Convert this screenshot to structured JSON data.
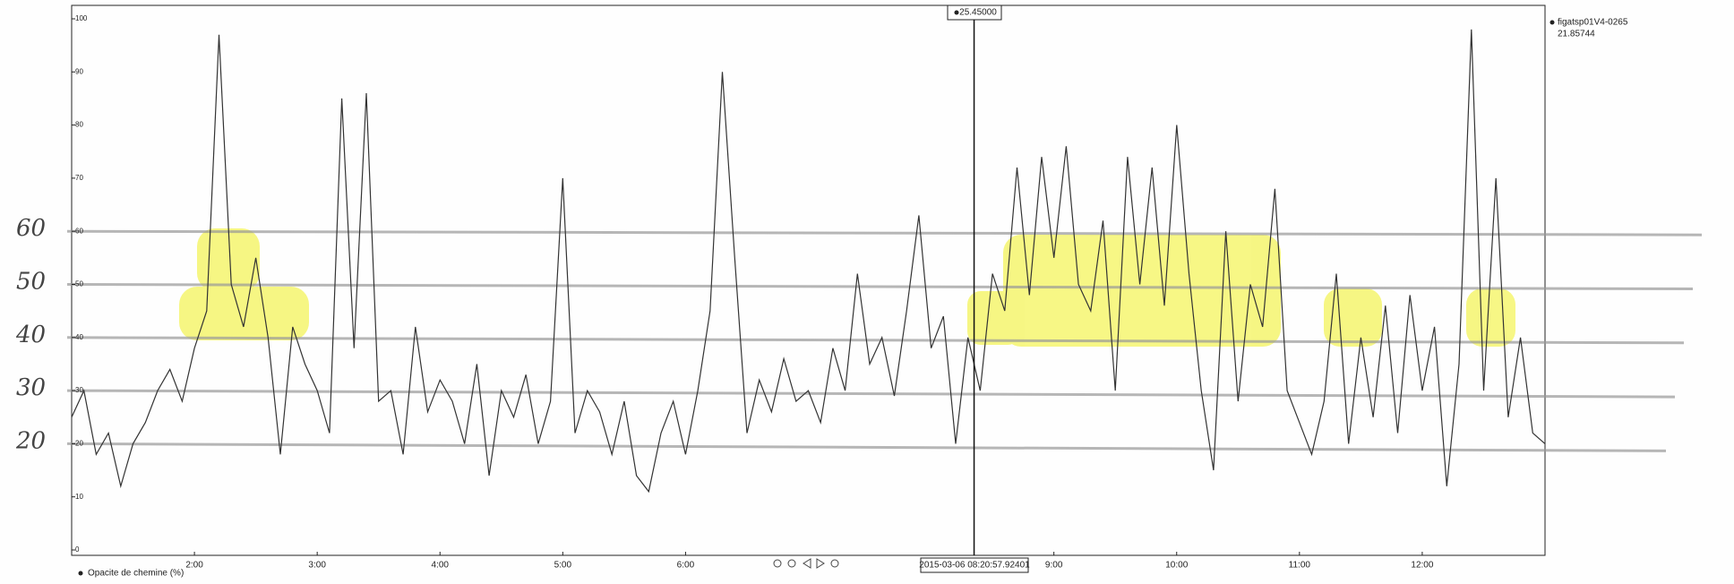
{
  "chart_data": {
    "type": "line",
    "x": [
      1,
      1.1,
      1.2,
      1.3,
      1.4,
      1.5,
      1.6,
      1.7,
      1.8,
      1.9,
      2,
      2.1,
      2.2,
      2.3,
      2.4,
      2.5,
      2.6,
      2.7,
      2.8,
      2.9,
      3,
      3.1,
      3.2,
      3.3,
      3.4,
      3.5,
      3.6,
      3.7,
      3.8,
      3.9,
      4,
      4.1,
      4.2,
      4.3,
      4.4,
      4.5,
      4.6,
      4.7,
      4.8,
      4.9,
      5,
      5.1,
      5.2,
      5.3,
      5.4,
      5.5,
      5.6,
      5.7,
      5.8,
      5.9,
      6,
      6.1,
      6.2,
      6.3,
      6.4,
      6.5,
      6.6,
      6.7,
      6.8,
      6.9,
      7,
      7.1,
      7.2,
      7.3,
      7.4,
      7.5,
      7.6,
      7.7,
      7.8,
      7.9,
      8,
      8.1,
      8.2,
      8.3,
      8.4,
      8.5,
      8.6,
      8.7,
      8.8,
      8.9,
      9,
      9.1,
      9.2,
      9.3,
      9.4,
      9.5,
      9.6,
      9.7,
      9.8,
      9.9,
      10,
      10.1,
      10.2,
      10.3,
      10.4,
      10.5,
      10.6,
      10.7,
      10.8,
      10.9,
      11,
      11.1,
      11.2,
      11.3,
      11.4,
      11.5,
      11.6,
      11.7,
      11.8,
      11.9,
      12,
      12.1,
      12.2,
      12.3,
      12.4,
      12.5,
      12.6,
      12.7,
      12.8,
      12.9,
      13
    ],
    "series": [
      {
        "name": "Opacite de chemine (%)",
        "color": "#333333",
        "values": [
          25,
          30,
          18,
          22,
          12,
          20,
          24,
          30,
          34,
          28,
          38,
          45,
          97,
          50,
          42,
          55,
          40,
          18,
          42,
          35,
          30,
          22,
          85,
          38,
          86,
          28,
          30,
          18,
          42,
          26,
          32,
          28,
          20,
          35,
          14,
          30,
          25,
          33,
          20,
          28,
          70,
          22,
          30,
          26,
          18,
          28,
          14,
          11,
          22,
          28,
          18,
          30,
          45,
          90,
          55,
          22,
          32,
          26,
          36,
          28,
          30,
          24,
          38,
          30,
          52,
          35,
          40,
          29,
          45,
          63,
          38,
          44,
          20,
          40,
          30,
          52,
          45,
          72,
          48,
          74,
          55,
          76,
          50,
          45,
          62,
          30,
          74,
          50,
          72,
          46,
          80,
          52,
          30,
          15,
          60,
          28,
          50,
          42,
          68,
          30,
          24,
          18,
          28,
          52,
          20,
          40,
          25,
          46,
          22,
          48,
          30,
          42,
          12,
          35,
          98,
          30,
          70,
          25,
          40,
          22,
          20
        ]
      }
    ],
    "xlim": [
      1,
      13
    ],
    "xticks": [
      {
        "value": 2,
        "label": "2:00"
      },
      {
        "value": 3,
        "label": "3:00"
      },
      {
        "value": 4,
        "label": "4:00"
      },
      {
        "value": 5,
        "label": "5:00"
      },
      {
        "value": 6,
        "label": "6:00"
      },
      {
        "value": 9,
        "label": "9:00"
      },
      {
        "value": 10,
        "label": "10:00"
      },
      {
        "value": 11,
        "label": "11:00"
      },
      {
        "value": 12,
        "label": "12:00"
      }
    ],
    "ylim": [
      0,
      100
    ],
    "yticks": [
      0,
      10,
      20,
      30,
      40,
      50,
      60,
      70,
      80,
      90,
      100
    ],
    "grid": false,
    "cursor": {
      "x": 8.35,
      "label": "25.45000",
      "timestamp": "2015-03-06 08:20:57.92401"
    },
    "tooltip": {
      "name": "figatsp01V4-0265",
      "value": "21.85744"
    },
    "hand_levels": [
      60,
      50,
      40,
      30,
      20
    ]
  }
}
